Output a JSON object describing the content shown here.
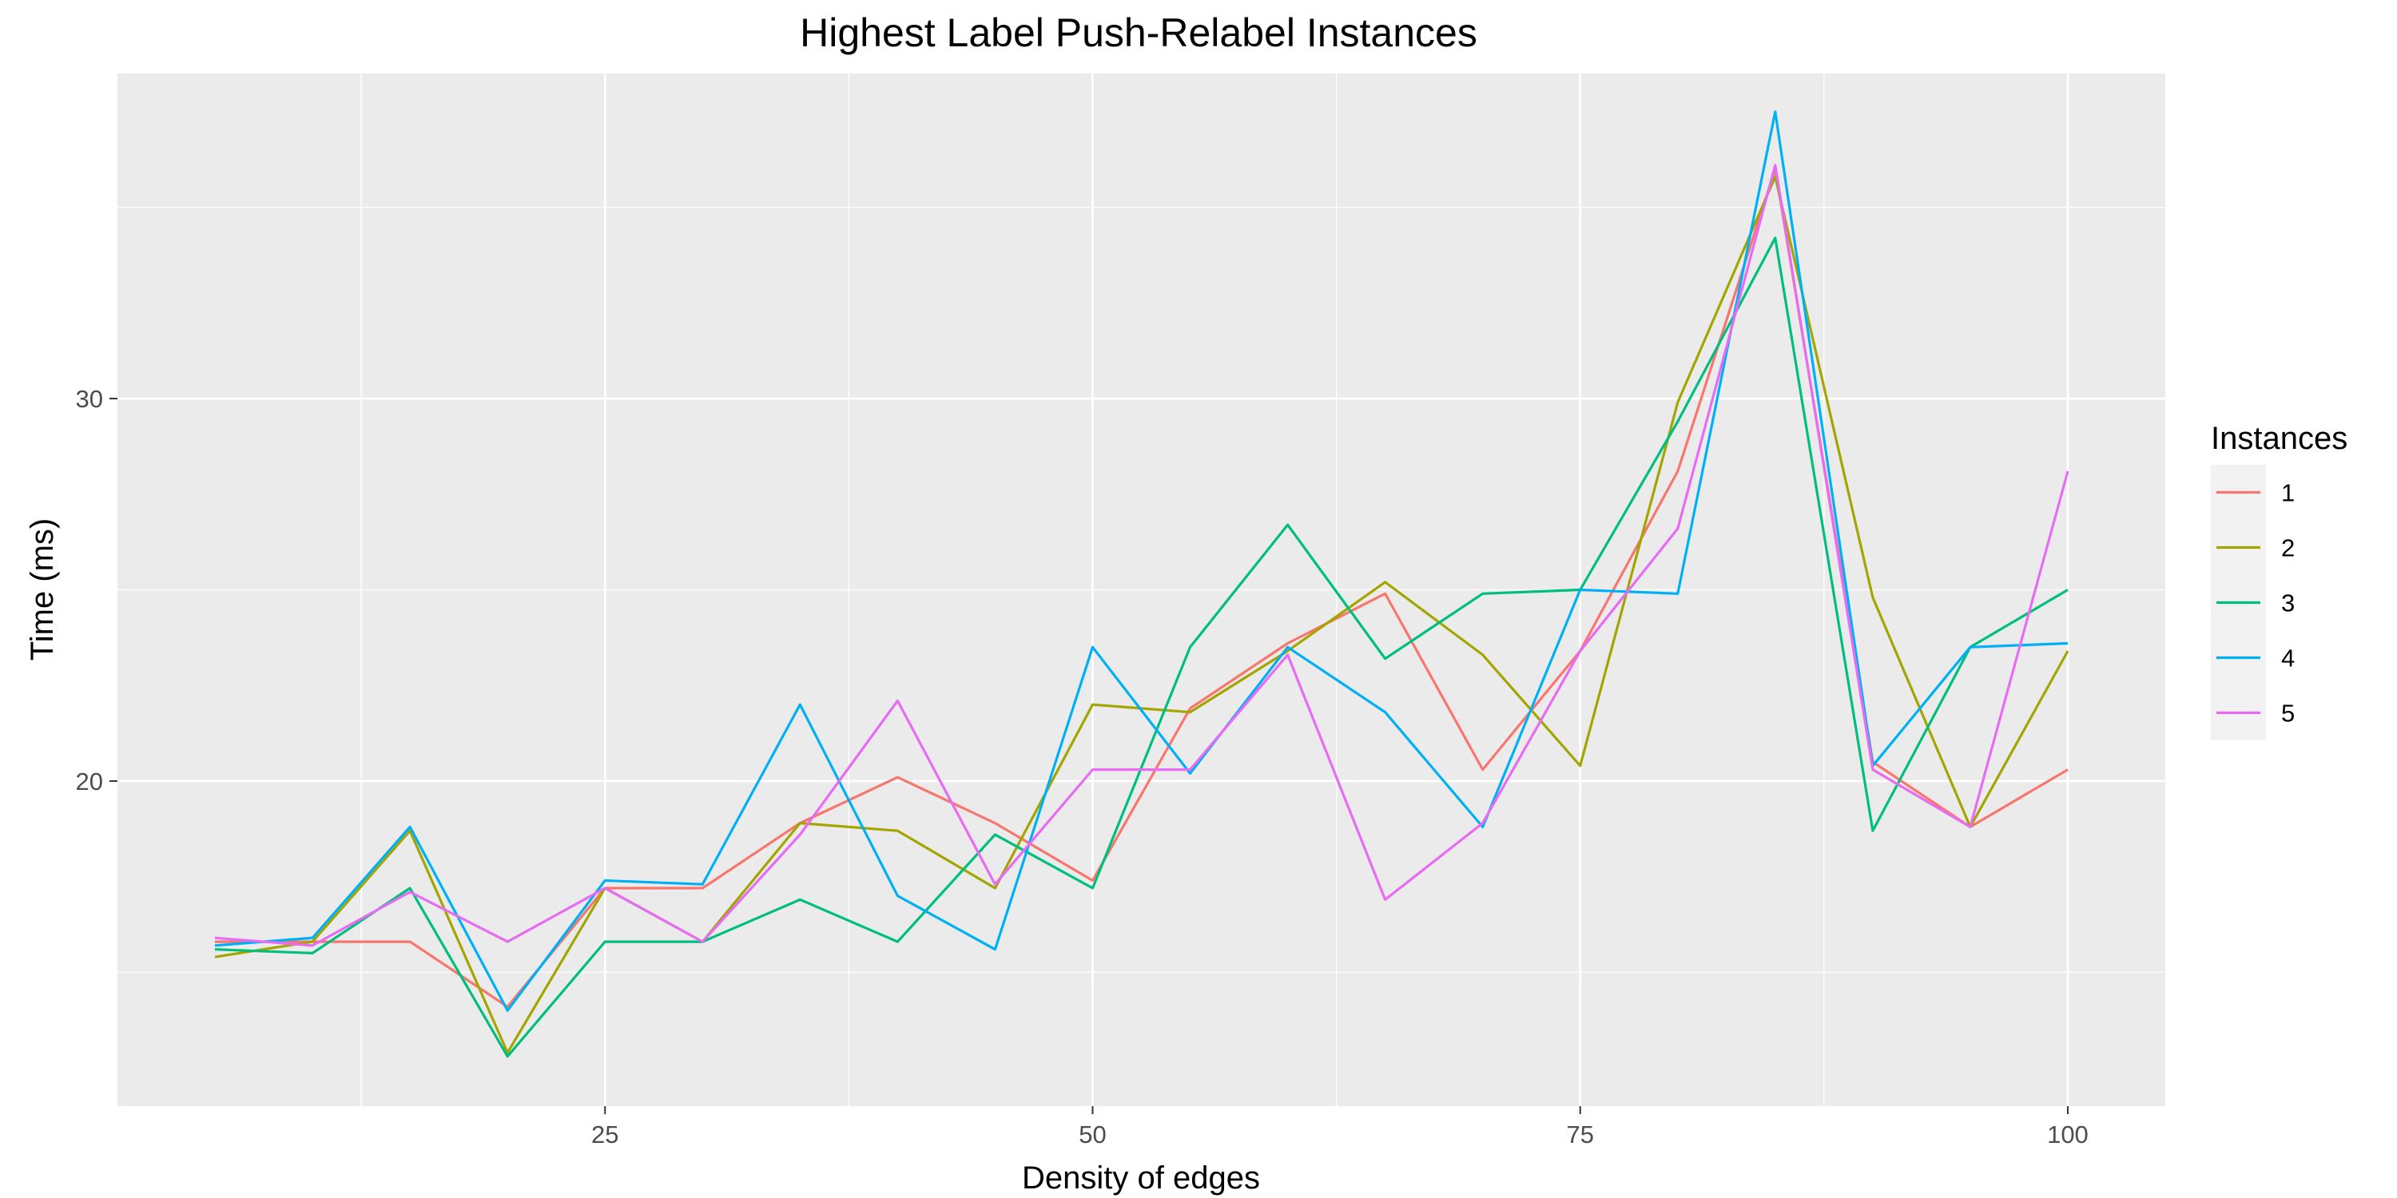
{
  "chart_data": {
    "type": "line",
    "title": "Highest Label Push-Relabel Instances",
    "xlabel": "Density of edges",
    "ylabel": "Time (ms)",
    "xlim": [
      0,
      105
    ],
    "ylim": [
      11.5,
      38.5
    ],
    "x_ticks": [
      25,
      50,
      75,
      100
    ],
    "y_ticks": [
      20,
      30
    ],
    "grid": true,
    "legend_title": "Instances",
    "legend_position": "right",
    "x": [
      5,
      10,
      15,
      20,
      25,
      30,
      35,
      40,
      45,
      50,
      55,
      60,
      65,
      70,
      75,
      80,
      85,
      90,
      95,
      100
    ],
    "series": [
      {
        "name": "1",
        "color": "#F8766D",
        "values": [
          15.8,
          15.8,
          15.8,
          14.1,
          17.2,
          17.2,
          18.9,
          20.1,
          18.9,
          17.4,
          21.9,
          23.6,
          24.9,
          20.3,
          23.4,
          28.1,
          36.0,
          20.5,
          18.8,
          20.3
        ]
      },
      {
        "name": "2",
        "color": "#A3A500",
        "values": [
          15.4,
          15.8,
          18.7,
          12.9,
          17.2,
          15.8,
          18.9,
          18.7,
          17.2,
          22.0,
          21.8,
          23.4,
          25.2,
          23.3,
          20.4,
          29.9,
          35.8,
          24.8,
          18.8,
          23.4
        ]
      },
      {
        "name": "3",
        "color": "#00BF7D",
        "values": [
          15.6,
          15.5,
          17.2,
          12.8,
          15.8,
          15.8,
          16.9,
          15.8,
          18.6,
          17.2,
          23.5,
          26.7,
          23.2,
          24.9,
          25.0,
          29.4,
          34.2,
          18.7,
          23.5,
          25.0
        ]
      },
      {
        "name": "4",
        "color": "#00B0F6",
        "values": [
          15.7,
          15.9,
          18.8,
          14.0,
          17.4,
          17.3,
          22.0,
          17.0,
          15.6,
          23.5,
          20.2,
          23.5,
          21.8,
          18.8,
          25.0,
          24.9,
          37.5,
          20.4,
          23.5,
          23.6
        ]
      },
      {
        "name": "5",
        "color": "#E76BF3",
        "values": [
          15.9,
          15.7,
          17.1,
          15.8,
          17.2,
          15.8,
          18.6,
          22.1,
          17.3,
          20.3,
          20.3,
          23.3,
          16.9,
          18.9,
          23.4,
          26.6,
          36.1,
          20.3,
          18.8,
          28.1
        ]
      }
    ]
  },
  "colors": {
    "panel_background": "#EBEBEB",
    "grid_major": "#FFFFFF",
    "legend_key_background": "#F2F2F2"
  }
}
